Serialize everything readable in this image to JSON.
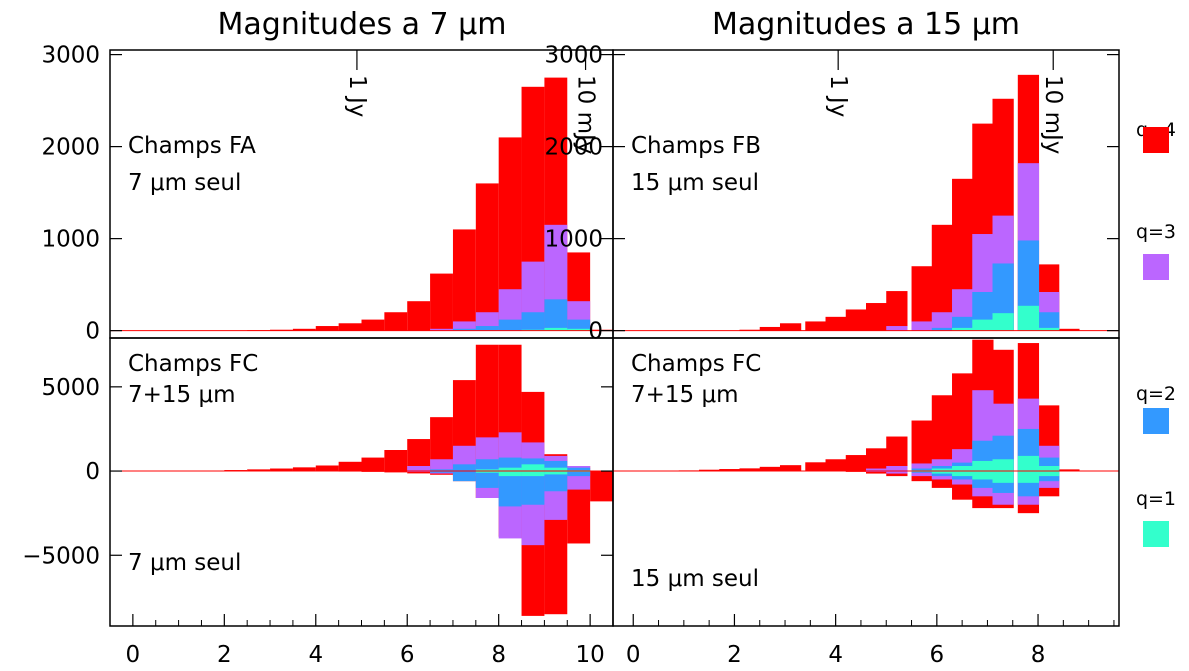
{
  "colors": {
    "q4": "#ff0000",
    "q3": "#bb66ff",
    "q2": "#3399ff",
    "q1": "#33ffcc"
  },
  "titles": {
    "left": "Magnitudes a 7 μm",
    "right": "Magnitudes a 15 μm"
  },
  "legend": [
    {
      "label": "q=4",
      "color_key": "q4"
    },
    {
      "label": "q=3",
      "color_key": "q3"
    },
    {
      "label": "q=2",
      "color_key": "q2"
    },
    {
      "label": "q=1",
      "color_key": "q1"
    }
  ],
  "chart_data": [
    {
      "type": "bar",
      "panel": "top-left",
      "text": [
        "Champs FA",
        "7 μm seul"
      ],
      "markers": [
        {
          "label": "1 Jy",
          "x": 4.9
        },
        {
          "label": "10 mJy",
          "x": 9.9
        }
      ],
      "bin_width": 0.5,
      "xlim": [
        -0.5,
        10.5
      ],
      "ylim": [
        -80,
        3050
      ],
      "y_ticks": [
        0,
        1000,
        2000,
        3000
      ],
      "series": [
        {
          "name": "q=4",
          "color_key": "q4",
          "x": [
            2.5,
            3,
            3.5,
            4,
            4.5,
            5,
            5.5,
            6,
            6.5,
            7,
            7.5,
            8,
            8.5,
            9,
            9.5,
            10
          ],
          "values": [
            5,
            10,
            20,
            50,
            80,
            120,
            200,
            320,
            620,
            1100,
            1600,
            2100,
            2650,
            2750,
            850,
            10
          ]
        },
        {
          "name": "q=3",
          "color_key": "q3",
          "x": [
            6.5,
            7,
            7.5,
            8,
            8.5,
            9,
            9.5
          ],
          "values": [
            20,
            100,
            200,
            450,
            750,
            1150,
            320
          ]
        },
        {
          "name": "q=2",
          "color_key": "q2",
          "x": [
            7,
            7.5,
            8,
            8.5,
            9,
            9.5
          ],
          "values": [
            20,
            50,
            120,
            200,
            340,
            120
          ]
        },
        {
          "name": "q=1",
          "color_key": "q1",
          "x": [
            8.5,
            9,
            9.5
          ],
          "values": [
            10,
            30,
            20
          ]
        }
      ]
    },
    {
      "type": "bar",
      "panel": "top-right",
      "text": [
        "Champs FB",
        "15 μm seul"
      ],
      "markers": [
        {
          "label": "1 Jy",
          "x": 4.05
        },
        {
          "label": "10 mJy",
          "x": 8.3
        }
      ],
      "bin_width": 0.42,
      "xlim": [
        -0.4,
        9.6
      ],
      "ylim": [
        -80,
        3050
      ],
      "y_ticks": [
        0,
        1000,
        2000,
        3000
      ],
      "series": [
        {
          "name": "q=4",
          "color_key": "q4",
          "x": [
            2.1,
            2.5,
            2.9,
            3.4,
            3.8,
            4.2,
            4.6,
            5,
            5.5,
            5.9,
            6.3,
            6.7,
            7.1,
            7.6,
            8,
            8.4
          ],
          "values": [
            10,
            40,
            80,
            100,
            150,
            230,
            300,
            430,
            700,
            1150,
            1650,
            2250,
            2520,
            2780,
            720,
            20
          ]
        },
        {
          "name": "q=3",
          "color_key": "q3",
          "x": [
            5,
            5.5,
            5.9,
            6.3,
            6.7,
            7.1,
            7.6,
            8
          ],
          "values": [
            50,
            100,
            200,
            450,
            1050,
            1250,
            1820,
            420
          ]
        },
        {
          "name": "q=2",
          "color_key": "q2",
          "x": [
            5.9,
            6.3,
            6.7,
            7.1,
            7.6,
            8
          ],
          "values": [
            30,
            150,
            420,
            730,
            980,
            200
          ]
        },
        {
          "name": "q=1",
          "color_key": "q1",
          "x": [
            6.3,
            6.7,
            7.1,
            7.6,
            8
          ],
          "values": [
            30,
            120,
            190,
            270,
            30
          ]
        }
      ]
    },
    {
      "type": "bar",
      "panel": "bottom-left",
      "text": [
        "Champs FC",
        "7+15 μm",
        "7 μm seul"
      ],
      "bin_width": 0.5,
      "xlim": [
        -0.5,
        10.5
      ],
      "ylim": [
        -9200,
        7900
      ],
      "y_ticks": [
        -5000,
        0,
        5000
      ],
      "series": [
        {
          "name": "q=4",
          "color_key": "q4",
          "x": [
            1.5,
            2,
            2.5,
            3,
            3.5,
            4,
            4.5,
            5,
            5.5,
            6,
            6.5,
            7,
            7.5,
            8,
            8.5,
            9,
            9.5,
            10
          ],
          "values": [
            30,
            60,
            100,
            150,
            220,
            330,
            550,
            800,
            1250,
            1900,
            3200,
            5400,
            7500,
            7500,
            4700,
            1000,
            300,
            30
          ],
          "negative_values": [
            0,
            0,
            0,
            0,
            0,
            0,
            30,
            50,
            80,
            140,
            220,
            600,
            1600,
            3900,
            8600,
            8500,
            4300,
            1800
          ]
        },
        {
          "name": "q=3",
          "color_key": "q3",
          "x": [
            6,
            6.5,
            7,
            7.5,
            8,
            8.5,
            9,
            9.5
          ],
          "values": [
            300,
            700,
            1500,
            2000,
            2300,
            1700,
            900,
            300
          ],
          "negative_values": [
            50,
            150,
            300,
            1600,
            4000,
            4400,
            2900,
            1100
          ]
        },
        {
          "name": "q=2",
          "color_key": "q2",
          "x": [
            6.5,
            7,
            7.5,
            8,
            8.5,
            9,
            9.5
          ],
          "values": [
            100,
            400,
            700,
            800,
            750,
            600,
            200
          ],
          "negative_values": [
            100,
            600,
            1000,
            2100,
            2000,
            1200,
            300
          ]
        },
        {
          "name": "q=1",
          "color_key": "q1",
          "x": [
            7.5,
            8,
            8.5,
            9,
            9.5
          ],
          "values": [
            100,
            200,
            400,
            200,
            50
          ],
          "negative_values": [
            100,
            300,
            300,
            200,
            50
          ]
        }
      ]
    },
    {
      "type": "bar",
      "panel": "bottom-right",
      "text": [
        "Champs FC",
        "7+15 μm",
        "15 μm seul"
      ],
      "bin_width": 0.42,
      "xlim": [
        -0.4,
        9.6
      ],
      "ylim": [
        -9200,
        7900
      ],
      "y_ticks": [],
      "series": [
        {
          "name": "q=4",
          "color_key": "q4",
          "x": [
            0.5,
            0.9,
            1.3,
            1.7,
            2.1,
            2.5,
            2.9,
            3.4,
            3.8,
            4.2,
            4.6,
            5,
            5.5,
            5.9,
            6.3,
            6.7,
            7.1,
            7.6,
            8,
            8.4
          ],
          "values": [
            0,
            40,
            80,
            120,
            160,
            250,
            350,
            520,
            700,
            950,
            1350,
            2050,
            3000,
            4500,
            5800,
            7800,
            7200,
            7600,
            3900,
            100
          ],
          "negative_values": [
            0,
            0,
            0,
            0,
            0,
            0,
            0,
            0,
            0,
            50,
            150,
            300,
            600,
            1000,
            1700,
            2200,
            2200,
            2500,
            1500,
            0
          ]
        },
        {
          "name": "q=3",
          "color_key": "q3",
          "x": [
            4.6,
            5,
            5.5,
            5.9,
            6.3,
            6.7,
            7.1,
            7.6,
            8
          ],
          "values": [
            150,
            300,
            450,
            700,
            1300,
            4800,
            4000,
            4300,
            1500
          ],
          "negative_values": [
            50,
            150,
            300,
            500,
            800,
            1500,
            2000,
            2000,
            1000
          ]
        },
        {
          "name": "q=2",
          "color_key": "q2",
          "x": [
            5.5,
            5.9,
            6.3,
            6.7,
            7.1,
            7.6,
            8
          ],
          "values": [
            150,
            300,
            500,
            1800,
            2100,
            2500,
            800
          ],
          "negative_values": [
            100,
            300,
            500,
            1000,
            1300,
            1500,
            600
          ]
        },
        {
          "name": "q=1",
          "color_key": "q1",
          "x": [
            5.5,
            5.9,
            6.3,
            6.7,
            7.1,
            7.6,
            8
          ],
          "values": [
            50,
            150,
            300,
            600,
            700,
            900,
            300
          ],
          "negative_values": [
            50,
            150,
            300,
            500,
            700,
            700,
            300
          ]
        }
      ]
    }
  ],
  "x_ticks_left": [
    0,
    2,
    4,
    6,
    8,
    10
  ],
  "x_ticks_right": [
    0,
    2,
    4,
    6,
    8
  ]
}
